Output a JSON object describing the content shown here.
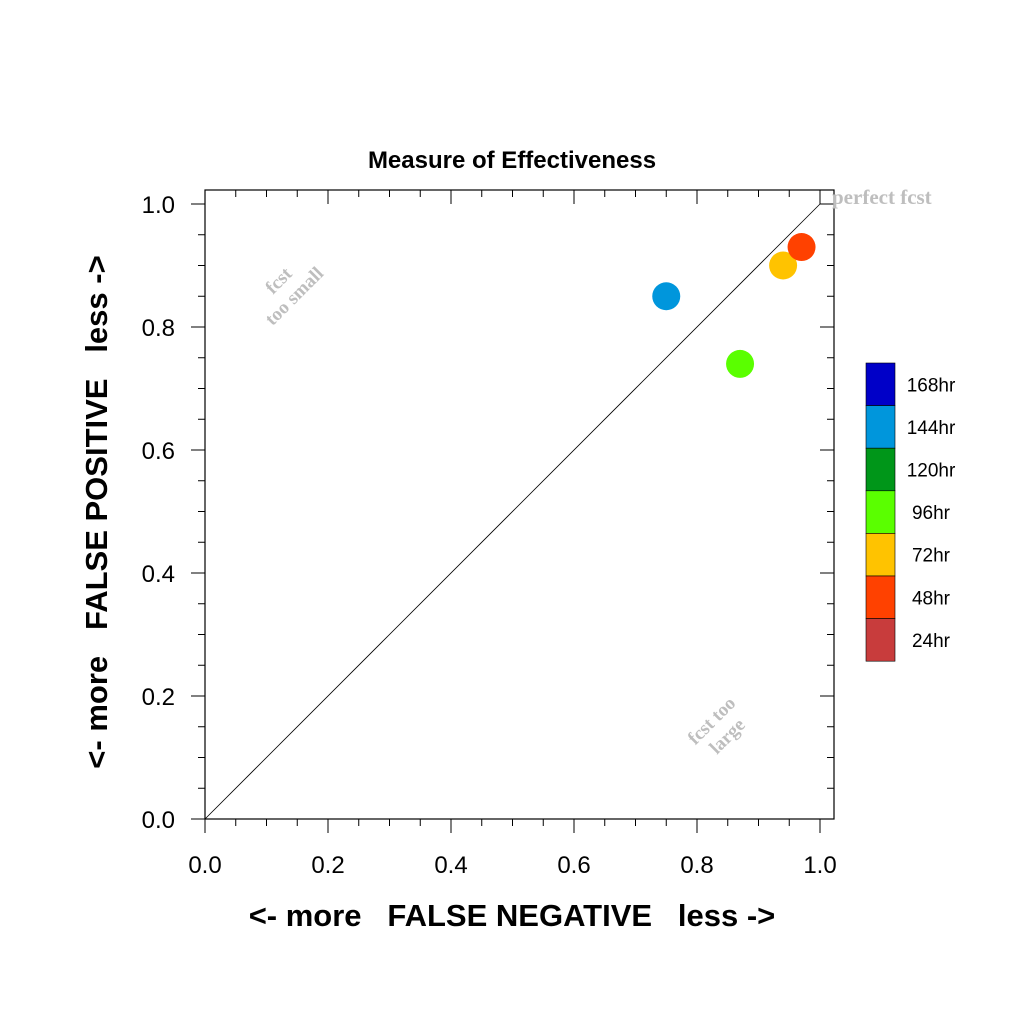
{
  "chart_data": {
    "type": "scatter",
    "title": "Measure of Effectiveness",
    "xlabel": "<- more   FALSE NEGATIVE   less ->",
    "ylabel": "<- more   FALSE POSITIVE   less ->",
    "xlim": [
      0.0,
      1.0
    ],
    "ylim": [
      0.0,
      1.0
    ],
    "xticks": [
      "0.0",
      "0.2",
      "0.4",
      "0.6",
      "0.8",
      "1.0"
    ],
    "yticks": [
      "0.0",
      "0.2",
      "0.4",
      "0.6",
      "0.8",
      "1.0"
    ],
    "grid": false,
    "reference_line": "diagonal from (0,0) to (1,1)",
    "annotations": {
      "perfect": "perfect fcst",
      "small_line1": "fcst",
      "small_line2": "too small",
      "large_line1": "fcst too",
      "large_line2": "large"
    },
    "legend": {
      "placement": "right",
      "entries": [
        {
          "label": "168hr",
          "color": "#0000c8"
        },
        {
          "label": "144hr",
          "color": "#0096dc"
        },
        {
          "label": "120hr",
          "color": "#009619"
        },
        {
          "label": "96hr",
          "color": "#5aff00"
        },
        {
          "label": "72hr",
          "color": "#ffc300"
        },
        {
          "label": "48hr",
          "color": "#ff4100"
        },
        {
          "label": "24hr",
          "color": "#c83c3c"
        }
      ]
    },
    "points": [
      {
        "series": "144hr",
        "x": 0.75,
        "y": 0.85,
        "color": "#0096dc"
      },
      {
        "series": "96hr",
        "x": 0.87,
        "y": 0.74,
        "color": "#5aff00"
      },
      {
        "series": "72hr",
        "x": 0.94,
        "y": 0.9,
        "color": "#ffc300"
      },
      {
        "series": "48hr",
        "x": 0.97,
        "y": 0.93,
        "color": "#ff4100"
      }
    ]
  }
}
